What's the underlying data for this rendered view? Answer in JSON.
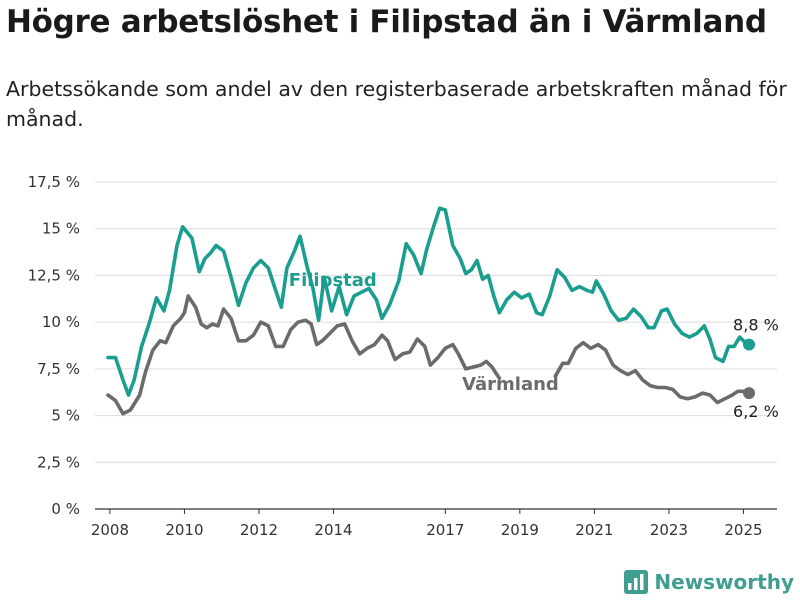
{
  "title": "Högre arbetslöshet i Filipstad än i Värmland",
  "subtitle": "Arbetssökande som andel av den registerbaserade arbetskraften månad för månad.",
  "brand": {
    "name": "Newsworthy",
    "icon": "newsworthy-chart-icon",
    "color": "#3f9e8f"
  },
  "chart_data": {
    "type": "line",
    "title": "Högre arbetslöshet i Filipstad än i Värmland",
    "ylim": [
      0,
      17.5
    ],
    "xlim": [
      2007.6,
      2025.9
    ],
    "y_ticks": [
      0,
      2.5,
      5,
      7.5,
      10,
      12.5,
      15,
      17.5
    ],
    "y_tick_labels": [
      "0 %",
      "2,5 %",
      "5 %",
      "7,5 %",
      "10 %",
      "12,5 %",
      "15 %",
      "17,5 %"
    ],
    "x_ticks": [
      2008,
      2010,
      2012,
      2014,
      2017,
      2019,
      2021,
      2023,
      2025
    ],
    "x_tick_labels": [
      "2008",
      "2010",
      "2012",
      "2014",
      "2017",
      "2019",
      "2021",
      "2023",
      "2025"
    ],
    "grid": true,
    "series": [
      {
        "name": "Filipstad",
        "color": "#1a9e8f",
        "end_label": "8,8 %",
        "points": [
          [
            2007.95,
            8.1
          ],
          [
            2008.15,
            8.1
          ],
          [
            2008.35,
            6.9
          ],
          [
            2008.5,
            6.1
          ],
          [
            2008.65,
            6.9
          ],
          [
            2008.85,
            8.7
          ],
          [
            2009.05,
            9.9
          ],
          [
            2009.25,
            11.3
          ],
          [
            2009.45,
            10.6
          ],
          [
            2009.6,
            11.7
          ],
          [
            2009.8,
            14.1
          ],
          [
            2009.95,
            15.1
          ],
          [
            2010.2,
            14.5
          ],
          [
            2010.4,
            12.7
          ],
          [
            2010.55,
            13.4
          ],
          [
            2010.7,
            13.7
          ],
          [
            2010.85,
            14.1
          ],
          [
            2011.05,
            13.8
          ],
          [
            2011.25,
            12.4
          ],
          [
            2011.45,
            10.9
          ],
          [
            2011.65,
            12.1
          ],
          [
            2011.85,
            12.9
          ],
          [
            2012.05,
            13.3
          ],
          [
            2012.25,
            12.9
          ],
          [
            2012.45,
            11.7
          ],
          [
            2012.6,
            10.8
          ],
          [
            2012.75,
            12.9
          ],
          [
            2012.95,
            13.8
          ],
          [
            2013.1,
            14.6
          ],
          [
            2013.3,
            12.9
          ],
          [
            2013.45,
            11.8
          ],
          [
            2013.6,
            10.1
          ],
          [
            2013.75,
            12.4
          ],
          [
            2013.95,
            10.6
          ],
          [
            2014.15,
            11.9
          ],
          [
            2014.35,
            10.4
          ],
          [
            2014.55,
            11.4
          ],
          [
            2014.75,
            11.6
          ],
          [
            2014.95,
            11.8
          ],
          [
            2015.15,
            11.2
          ],
          [
            2015.3,
            10.2
          ],
          [
            2015.5,
            10.9
          ],
          [
            2015.75,
            12.2
          ],
          [
            2015.95,
            14.2
          ],
          [
            2016.15,
            13.6
          ],
          [
            2016.35,
            12.6
          ],
          [
            2016.5,
            13.9
          ],
          [
            2016.7,
            15.2
          ],
          [
            2016.85,
            16.1
          ],
          [
            2017.0,
            16.0
          ],
          [
            2017.2,
            14.1
          ],
          [
            2017.4,
            13.4
          ],
          [
            2017.55,
            12.6
          ],
          [
            2017.7,
            12.8
          ],
          [
            2017.85,
            13.3
          ],
          [
            2018.0,
            12.3
          ],
          [
            2018.15,
            12.5
          ],
          [
            2018.3,
            11.4
          ],
          [
            2018.45,
            10.5
          ],
          [
            2018.65,
            11.2
          ],
          [
            2018.85,
            11.6
          ],
          [
            2019.05,
            11.3
          ],
          [
            2019.25,
            11.5
          ],
          [
            2019.45,
            10.5
          ],
          [
            2019.6,
            10.4
          ],
          [
            2019.8,
            11.4
          ],
          [
            2020.0,
            12.8
          ],
          [
            2020.2,
            12.4
          ],
          [
            2020.4,
            11.7
          ],
          [
            2020.6,
            11.9
          ],
          [
            2020.8,
            11.7
          ],
          [
            2020.95,
            11.6
          ],
          [
            2021.05,
            12.2
          ],
          [
            2021.25,
            11.5
          ],
          [
            2021.45,
            10.6
          ],
          [
            2021.65,
            10.1
          ],
          [
            2021.85,
            10.2
          ],
          [
            2022.05,
            10.7
          ],
          [
            2022.25,
            10.3
          ],
          [
            2022.45,
            9.7
          ],
          [
            2022.6,
            9.7
          ],
          [
            2022.8,
            10.6
          ],
          [
            2022.95,
            10.7
          ],
          [
            2023.15,
            9.9
          ],
          [
            2023.35,
            9.4
          ],
          [
            2023.55,
            9.2
          ],
          [
            2023.75,
            9.4
          ],
          [
            2023.95,
            9.8
          ],
          [
            2024.1,
            9.1
          ],
          [
            2024.25,
            8.1
          ],
          [
            2024.45,
            7.9
          ],
          [
            2024.6,
            8.7
          ],
          [
            2024.75,
            8.7
          ],
          [
            2024.9,
            9.2
          ],
          [
            2025.05,
            8.9
          ],
          [
            2025.15,
            8.8
          ]
        ]
      },
      {
        "name": "Värmland",
        "color": "#6b6b6b",
        "end_label": "6,2 %",
        "points": [
          [
            2007.95,
            6.1
          ],
          [
            2008.15,
            5.8
          ],
          [
            2008.35,
            5.1
          ],
          [
            2008.55,
            5.3
          ],
          [
            2008.8,
            6.1
          ],
          [
            2008.95,
            7.3
          ],
          [
            2009.15,
            8.5
          ],
          [
            2009.35,
            9.0
          ],
          [
            2009.5,
            8.9
          ],
          [
            2009.7,
            9.8
          ],
          [
            2009.9,
            10.2
          ],
          [
            2010.0,
            10.5
          ],
          [
            2010.1,
            11.4
          ],
          [
            2010.3,
            10.8
          ],
          [
            2010.45,
            9.9
          ],
          [
            2010.6,
            9.7
          ],
          [
            2010.75,
            9.9
          ],
          [
            2010.9,
            9.8
          ],
          [
            2011.05,
            10.7
          ],
          [
            2011.25,
            10.2
          ],
          [
            2011.45,
            9.0
          ],
          [
            2011.65,
            9.0
          ],
          [
            2011.85,
            9.3
          ],
          [
            2012.05,
            10.0
          ],
          [
            2012.25,
            9.8
          ],
          [
            2012.45,
            8.7
          ],
          [
            2012.65,
            8.7
          ],
          [
            2012.85,
            9.6
          ],
          [
            2013.05,
            10.0
          ],
          [
            2013.25,
            10.1
          ],
          [
            2013.4,
            9.9
          ],
          [
            2013.55,
            8.8
          ],
          [
            2013.7,
            9.0
          ],
          [
            2013.9,
            9.4
          ],
          [
            2014.1,
            9.8
          ],
          [
            2014.3,
            9.9
          ],
          [
            2014.5,
            9.0
          ],
          [
            2014.7,
            8.3
          ],
          [
            2014.9,
            8.6
          ],
          [
            2015.1,
            8.8
          ],
          [
            2015.3,
            9.3
          ],
          [
            2015.45,
            9.0
          ],
          [
            2015.65,
            8.0
          ],
          [
            2015.85,
            8.3
          ],
          [
            2016.05,
            8.4
          ],
          [
            2016.25,
            9.1
          ],
          [
            2016.45,
            8.7
          ],
          [
            2016.6,
            7.7
          ],
          [
            2016.8,
            8.1
          ],
          [
            2017.0,
            8.6
          ],
          [
            2017.2,
            8.8
          ],
          [
            2017.35,
            8.3
          ],
          [
            2017.55,
            7.5
          ],
          [
            2017.75,
            7.6
          ],
          [
            2017.95,
            7.7
          ],
          [
            2018.1,
            7.9
          ],
          [
            2018.25,
            7.6
          ],
          [
            2018.45,
            7.0
          ],
          null,
          [
            2019.95,
            7.1
          ],
          [
            2020.15,
            7.8
          ],
          [
            2020.3,
            7.8
          ],
          [
            2020.5,
            8.6
          ],
          [
            2020.7,
            8.9
          ],
          [
            2020.9,
            8.6
          ],
          [
            2021.1,
            8.8
          ],
          [
            2021.3,
            8.5
          ],
          [
            2021.5,
            7.7
          ],
          [
            2021.7,
            7.4
          ],
          [
            2021.9,
            7.2
          ],
          [
            2022.1,
            7.4
          ],
          [
            2022.3,
            6.9
          ],
          [
            2022.5,
            6.6
          ],
          [
            2022.7,
            6.5
          ],
          [
            2022.9,
            6.5
          ],
          [
            2023.1,
            6.4
          ],
          [
            2023.3,
            6.0
          ],
          [
            2023.5,
            5.9
          ],
          [
            2023.7,
            6.0
          ],
          [
            2023.9,
            6.2
          ],
          [
            2024.1,
            6.1
          ],
          [
            2024.3,
            5.7
          ],
          [
            2024.5,
            5.9
          ],
          [
            2024.7,
            6.1
          ],
          [
            2024.85,
            6.3
          ],
          [
            2025.0,
            6.3
          ],
          [
            2025.15,
            6.2
          ]
        ]
      }
    ]
  }
}
